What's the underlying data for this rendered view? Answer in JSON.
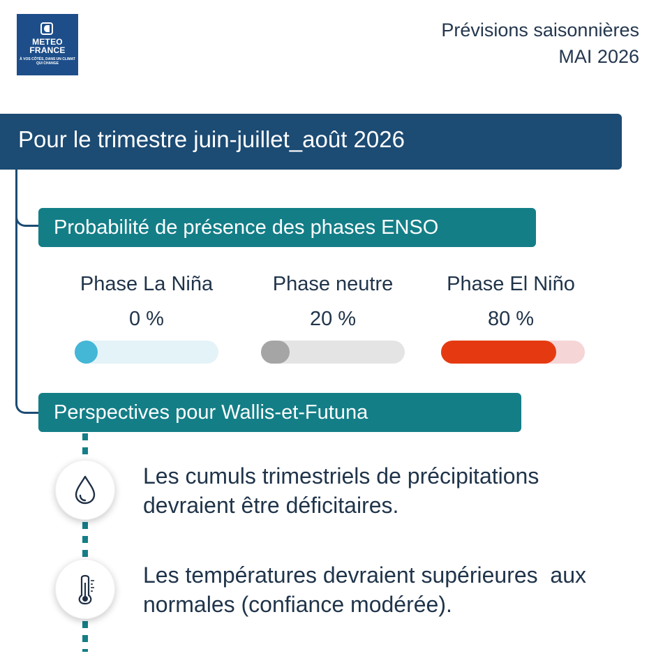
{
  "logo": {
    "title_line1": "METEO",
    "title_line2": "FRANCE",
    "tagline": "À vos côtés, dans un climat qui change"
  },
  "header": {
    "line1": "Prévisions saisonnières",
    "line2": "MAI 2026"
  },
  "banner": {
    "title": "Pour le trimestre juin-juillet_août 2026"
  },
  "enso": {
    "title": "Probabilité de présence des phases ENSO",
    "phases": [
      {
        "name": "Phase La Niña",
        "value": "0 %",
        "percent": 0,
        "track_color": "#e3f3f8",
        "fill_color": "#44b6d6"
      },
      {
        "name": "Phase neutre",
        "value": "20 %",
        "percent": 20,
        "track_color": "#e4e4e4",
        "fill_color": "#a5a5a5"
      },
      {
        "name": "Phase El Niño",
        "value": "80 %",
        "percent": 80,
        "track_color": "#f6d5d7",
        "fill_color": "#e53a11"
      }
    ]
  },
  "perspectives": {
    "title": "Perspectives pour Wallis-et-Futuna",
    "items": [
      {
        "icon": "water-drop-icon",
        "line1": "Les cumuls trimestriels de précipitations",
        "line2": "devraient être déficitaires."
      },
      {
        "icon": "thermometer-icon",
        "line1": "Les températures devraient supérieures  aux",
        "line2": "normales (confiance modérée)."
      }
    ]
  },
  "colors": {
    "navy": "#1c4b73",
    "teal": "#147e87",
    "logo_blue": "#1d4e8a"
  }
}
